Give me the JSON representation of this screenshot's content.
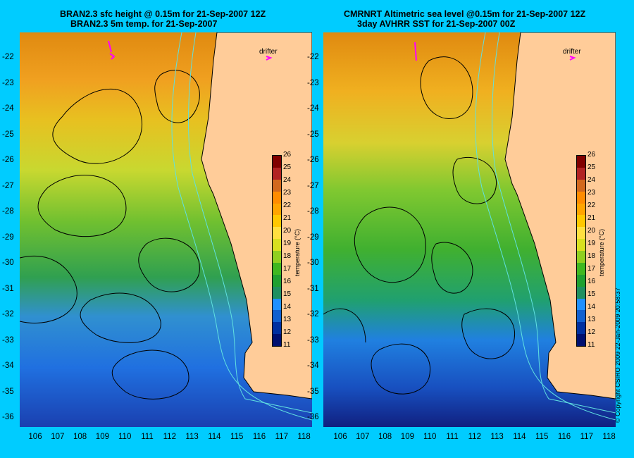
{
  "left_panel": {
    "title_line1": "BRAN2.3 sfc height @ 0.15m for 21-Sep-2007 12Z",
    "title_line2": "BRAN2.3 5m temp. for 21-Sep-2007",
    "drifter_label": "drifter"
  },
  "right_panel": {
    "title_line1": "CMRNRT Altimetric sea level  @0.15m  for 21-Sep-2007 12Z",
    "title_line2": "3day AVHRR SST for 21-Sep-2007 00Z",
    "drifter_label": "drifter"
  },
  "y_ticks": [
    "-22",
    "-23",
    "-24",
    "-25",
    "-26",
    "-27",
    "-28",
    "-29",
    "-30",
    "-31",
    "-32",
    "-33",
    "-34",
    "-35",
    "-36"
  ],
  "x_ticks": [
    "106",
    "107",
    "108",
    "109",
    "110",
    "111",
    "112",
    "113",
    "114",
    "115",
    "116",
    "117",
    "118"
  ],
  "colorbar": {
    "label": "temperature (°C)",
    "ticks": [
      "26",
      "25",
      "24",
      "23",
      "22",
      "21",
      "20",
      "19",
      "18",
      "17",
      "16",
      "15",
      "14",
      "13",
      "12",
      "11"
    ],
    "colors": [
      "#800000",
      "#b22222",
      "#d2691e",
      "#ff8c00",
      "#ffa500",
      "#ffc800",
      "#ffe040",
      "#d8e020",
      "#90d020",
      "#40b820",
      "#20a030",
      "#209060",
      "#1e90ff",
      "#1060d0",
      "#0030a0",
      "#001070"
    ]
  },
  "copyright": "© Copyright CSIRO 2009   22-Jan-2009 20:58:37",
  "colors": {
    "background": "#00ccff",
    "land": "#ffcc99",
    "drifter": "#ff00ff"
  }
}
